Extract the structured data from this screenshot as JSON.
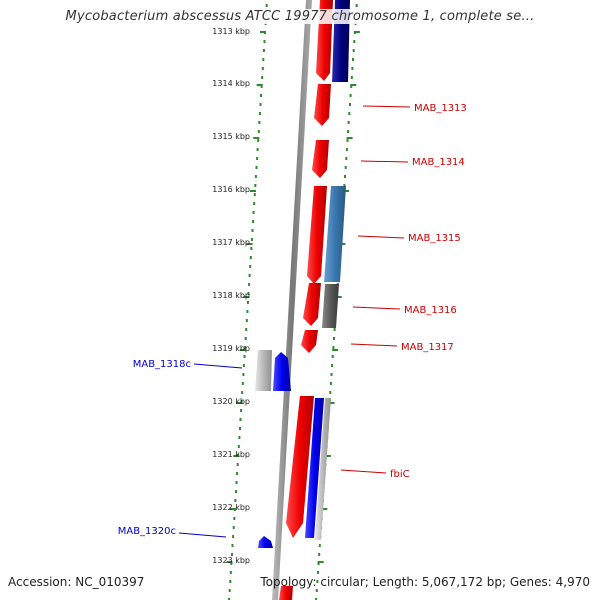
{
  "title": "Mycobacterium abscessus ATCC 19977 chromosome 1, complete se...",
  "footer": {
    "accession": "Accession: NC_010397",
    "stats": "Topology: circular; Length: 5,067,172 bp; Genes: 4,970"
  },
  "colors": {
    "ticks": "#2e8b2e",
    "forward_gene": "#ee0000",
    "reverse_gene": "#0000ee",
    "dark_blue_gene": "#000080",
    "steel_gene": "#3a78b0",
    "grey_gene": "#5a5a5a",
    "backbone": "#888888",
    "forward_label": "#cc0000",
    "reverse_label": "#0000cc"
  },
  "ruler": {
    "labels": [
      "1313 kbp",
      "1314 kbp",
      "1315 kbp",
      "1316 kbp",
      "1317 kbp",
      "1318 kbp",
      "1319 kbp",
      "1320 kbp",
      "1321 kbp",
      "1322 kbp",
      "1323 kbp"
    ]
  },
  "gene_labels": [
    {
      "text": "MAB_1313",
      "strand": "forward"
    },
    {
      "text": "MAB_1314",
      "strand": "forward"
    },
    {
      "text": "MAB_1315",
      "strand": "forward"
    },
    {
      "text": "MAB_1316",
      "strand": "forward"
    },
    {
      "text": "MAB_1317",
      "strand": "forward"
    },
    {
      "text": "fbiC",
      "strand": "forward"
    },
    {
      "text": "MAB_1318c",
      "strand": "reverse"
    },
    {
      "text": "MAB_1320c",
      "strand": "reverse"
    }
  ]
}
